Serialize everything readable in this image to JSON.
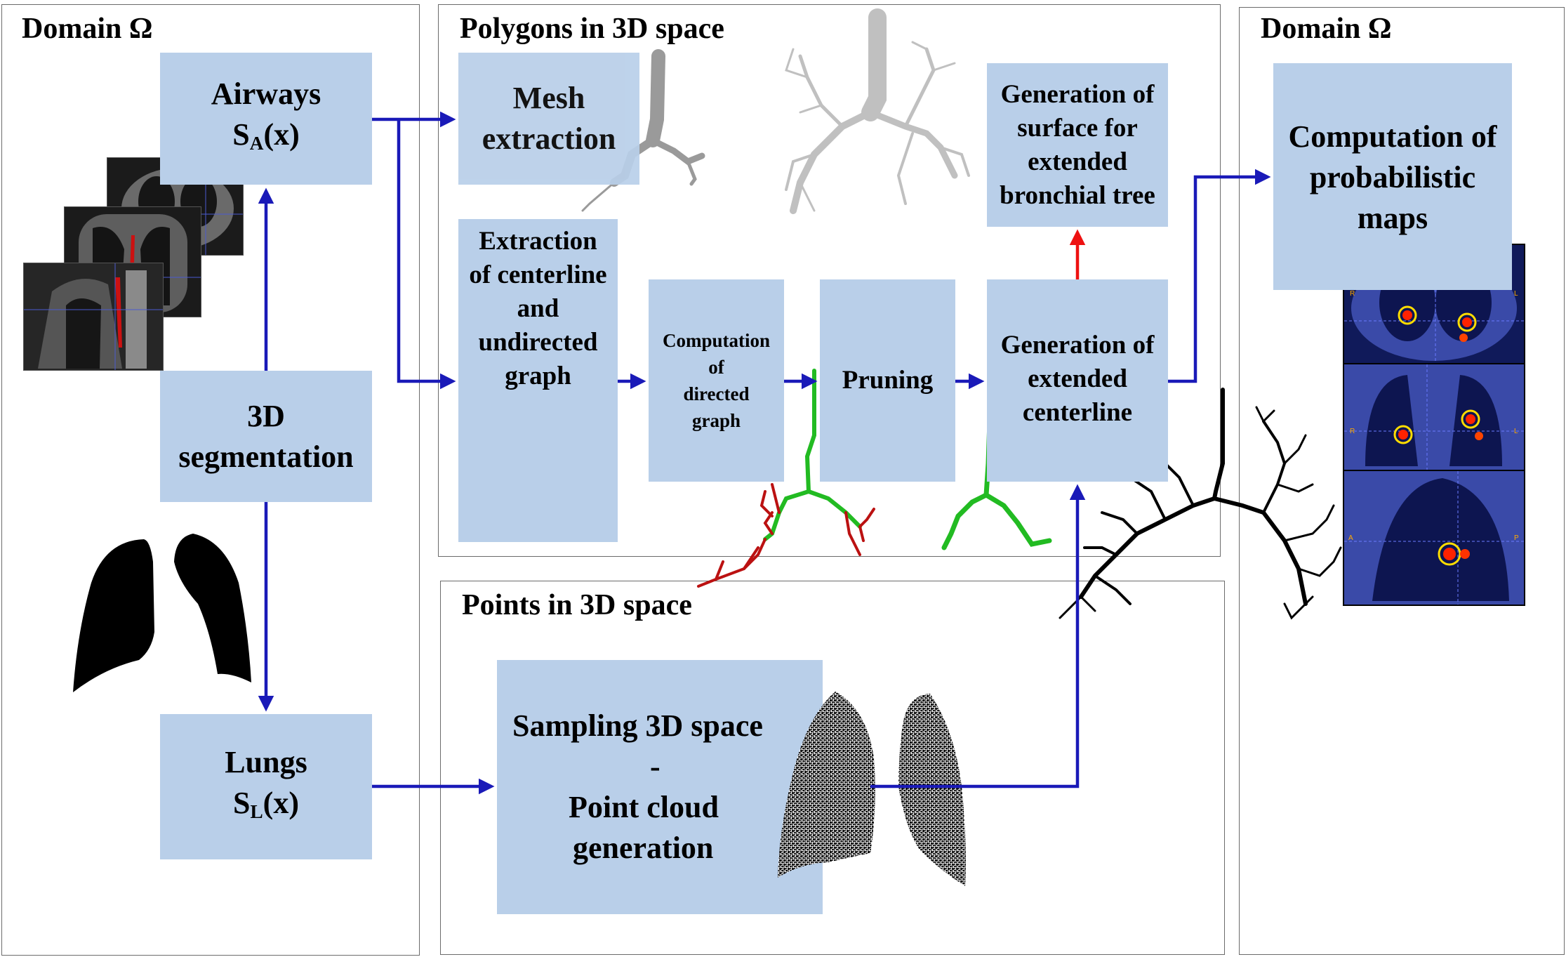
{
  "panels": {
    "left_title": "Domain Ω",
    "polygons_title": "Polygons in 3D space",
    "points_title": "Points in 3D space",
    "right_title": "Domain Ω"
  },
  "boxes": {
    "airways": {
      "line1": "Airways",
      "line2_main": "S",
      "line2_sub": "A",
      "line2_rest": "(x)"
    },
    "segmentation": {
      "line1": "3D",
      "line2": "segmentation"
    },
    "lungs": {
      "line1": "Lungs",
      "line2_main": "S",
      "line2_sub": "L",
      "line2_rest": "(x)"
    },
    "mesh": {
      "line1": "Mesh",
      "line2": "extraction"
    },
    "centerline": {
      "line1": "Extraction",
      "line2": "of centerline",
      "line3": "and",
      "line4": "undirected",
      "line5": "graph"
    },
    "directed": {
      "line1": "Computation",
      "line2": "of",
      "line3": "directed",
      "line4": "graph"
    },
    "pruning": {
      "line1": "Pruning"
    },
    "extended_centerline": {
      "line1": "Generation of",
      "line2": "extended",
      "line3": "centerline"
    },
    "surface": {
      "line1": "Generation of",
      "line2": "surface for",
      "line3": "extended",
      "line4": "bronchial tree"
    },
    "sampling": {
      "line1": "Sampling 3D space",
      "line2": "-",
      "line3": "Point cloud",
      "line4": "generation"
    },
    "probabilistic": {
      "line1": "Computation of",
      "line2": "probabilistic",
      "line3": "maps"
    }
  },
  "heatmap_labels": {
    "axial_left": "R",
    "axial_right": "L",
    "coronal_left": "R",
    "coronal_right": "L",
    "sagittal_left": "A",
    "sagittal_right": "P"
  },
  "colors": {
    "box_fill": "#b9cfe9",
    "arrow_blue": "#1a1ab8",
    "arrow_red": "#ee1111",
    "tree_green": "#22bb22",
    "tree_red": "#bb1111",
    "panel_border": "#6b6b6b"
  }
}
